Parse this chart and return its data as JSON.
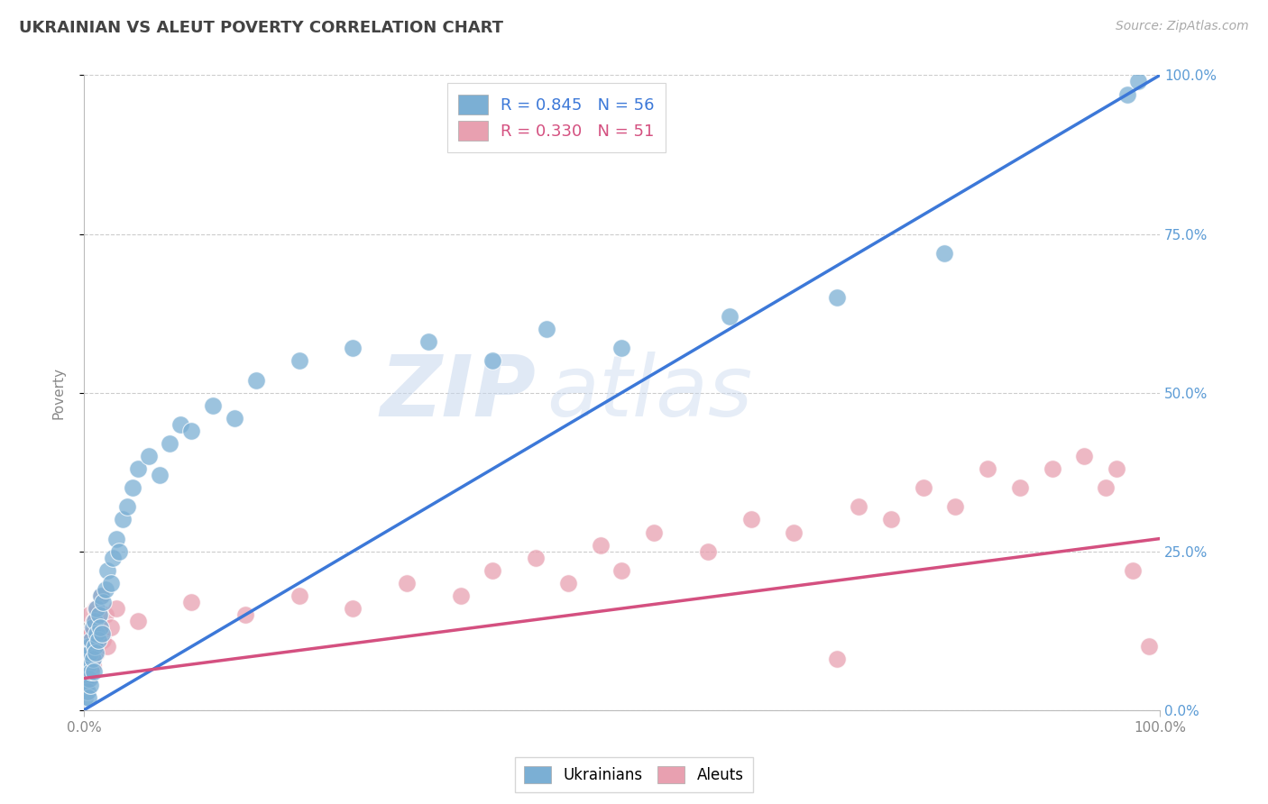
{
  "title": "UKRAINIAN VS ALEUT POVERTY CORRELATION CHART",
  "source_text": "Source: ZipAtlas.com",
  "ylabel": "Poverty",
  "xlim": [
    0.0,
    1.0
  ],
  "ylim": [
    0.0,
    1.0
  ],
  "x_tick_labels": [
    "0.0%",
    "100.0%"
  ],
  "y_tick_labels": [
    "0.0%",
    "25.0%",
    "50.0%",
    "75.0%",
    "100.0%"
  ],
  "y_tick_positions": [
    0.0,
    0.25,
    0.5,
    0.75,
    1.0
  ],
  "legend_label_uk": "R = 0.845   N = 56",
  "legend_label_al": "R = 0.330   N = 51",
  "watermark_zip": "ZIP",
  "watermark_atlas": "atlas",
  "ukrainian_color": "#7bafd4",
  "aleut_color": "#e8a0b0",
  "ukrainian_line_color": "#3c78d8",
  "aleut_line_color": "#d45080",
  "background_color": "#ffffff",
  "grid_color": "#cccccc",
  "title_color": "#434343",
  "axis_label_color": "#888888",
  "right_tick_color": "#5b9bd5",
  "ukrainian_scatter_x": [
    0.001,
    0.002,
    0.002,
    0.003,
    0.003,
    0.004,
    0.004,
    0.005,
    0.005,
    0.006,
    0.006,
    0.007,
    0.007,
    0.008,
    0.008,
    0.009,
    0.01,
    0.01,
    0.011,
    0.012,
    0.012,
    0.013,
    0.014,
    0.015,
    0.016,
    0.017,
    0.018,
    0.02,
    0.022,
    0.025,
    0.027,
    0.03,
    0.033,
    0.036,
    0.04,
    0.045,
    0.05,
    0.06,
    0.07,
    0.08,
    0.09,
    0.1,
    0.12,
    0.14,
    0.16,
    0.2,
    0.25,
    0.32,
    0.38,
    0.43,
    0.5,
    0.6,
    0.7,
    0.8,
    0.97,
    0.98
  ],
  "ukrainian_scatter_y": [
    0.02,
    0.04,
    0.06,
    0.03,
    0.08,
    0.02,
    0.07,
    0.05,
    0.1,
    0.04,
    0.09,
    0.06,
    0.11,
    0.08,
    0.13,
    0.06,
    0.1,
    0.14,
    0.09,
    0.12,
    0.16,
    0.11,
    0.15,
    0.13,
    0.18,
    0.12,
    0.17,
    0.19,
    0.22,
    0.2,
    0.24,
    0.27,
    0.25,
    0.3,
    0.32,
    0.35,
    0.38,
    0.4,
    0.37,
    0.42,
    0.45,
    0.44,
    0.48,
    0.46,
    0.52,
    0.55,
    0.57,
    0.58,
    0.55,
    0.6,
    0.57,
    0.62,
    0.65,
    0.72,
    0.97,
    0.99
  ],
  "aleut_scatter_x": [
    0.001,
    0.002,
    0.003,
    0.003,
    0.004,
    0.005,
    0.005,
    0.006,
    0.007,
    0.008,
    0.009,
    0.01,
    0.011,
    0.012,
    0.013,
    0.015,
    0.016,
    0.018,
    0.02,
    0.022,
    0.025,
    0.03,
    0.05,
    0.1,
    0.15,
    0.2,
    0.25,
    0.3,
    0.35,
    0.38,
    0.42,
    0.45,
    0.48,
    0.5,
    0.53,
    0.58,
    0.62,
    0.66,
    0.7,
    0.72,
    0.75,
    0.78,
    0.81,
    0.84,
    0.87,
    0.9,
    0.93,
    0.95,
    0.96,
    0.975,
    0.99
  ],
  "aleut_scatter_y": [
    0.04,
    0.08,
    0.06,
    0.12,
    0.05,
    0.1,
    0.15,
    0.08,
    0.12,
    0.07,
    0.14,
    0.1,
    0.16,
    0.09,
    0.13,
    0.12,
    0.18,
    0.11,
    0.15,
    0.1,
    0.13,
    0.16,
    0.14,
    0.17,
    0.15,
    0.18,
    0.16,
    0.2,
    0.18,
    0.22,
    0.24,
    0.2,
    0.26,
    0.22,
    0.28,
    0.25,
    0.3,
    0.28,
    0.08,
    0.32,
    0.3,
    0.35,
    0.32,
    0.38,
    0.35,
    0.38,
    0.4,
    0.35,
    0.38,
    0.22,
    0.1
  ],
  "uk_line_x0": 0.0,
  "uk_line_y0": 0.0,
  "uk_line_x1": 1.0,
  "uk_line_y1": 1.0,
  "al_line_x0": 0.0,
  "al_line_y0": 0.05,
  "al_line_x1": 1.0,
  "al_line_y1": 0.27
}
